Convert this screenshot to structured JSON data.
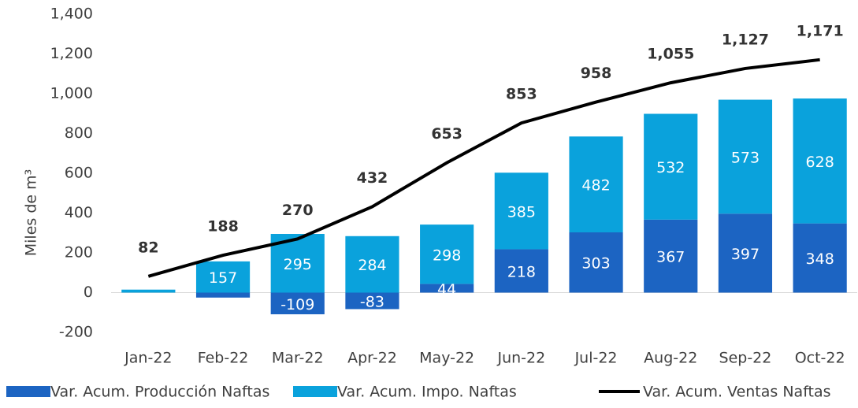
{
  "chart_data": {
    "type": "bar_line",
    "y_label": "Miles de m³",
    "categories": [
      "Jan-22",
      "Feb-22",
      "Mar-22",
      "Apr-22",
      "May-22",
      "Jun-22",
      "Jul-22",
      "Aug-22",
      "Sep-22",
      "Oct-22"
    ],
    "series": [
      {
        "name": "Var. Acum. Producción Naftas",
        "type": "bar",
        "color": "#1c64c2",
        "values": [
          0,
          -25,
          -109,
          -83,
          44,
          218,
          303,
          367,
          397,
          348
        ],
        "value_labels": [
          null,
          null,
          "-109",
          "-83",
          "44",
          "218",
          "303",
          "367",
          "397",
          "348"
        ]
      },
      {
        "name": "Var. Acum. Impo. Naftas",
        "type": "bar",
        "color": "#0aa2dc",
        "values": [
          15,
          157,
          295,
          284,
          298,
          385,
          482,
          532,
          573,
          628
        ],
        "value_labels": [
          null,
          "157",
          "295",
          "284",
          "298",
          "385",
          "482",
          "532",
          "573",
          "628"
        ]
      },
      {
        "name": "Var. Acum. Ventas Naftas",
        "type": "line",
        "color": "#000000",
        "values": [
          82,
          188,
          270,
          432,
          653,
          853,
          958,
          1055,
          1127,
          1171
        ],
        "value_labels": [
          "82",
          "188",
          "270",
          "432",
          "653",
          "853",
          "958",
          "1,055",
          "1,127",
          "1,171"
        ]
      }
    ],
    "ylim": [
      -200,
      1400
    ],
    "yticks": [
      -200,
      0,
      200,
      400,
      600,
      800,
      {
        "value": 1000,
        "label": "1,000"
      },
      {
        "value": 1200,
        "label": "1,200"
      },
      {
        "value": 1400,
        "label": "1,400"
      }
    ],
    "legend": "bottom"
  }
}
